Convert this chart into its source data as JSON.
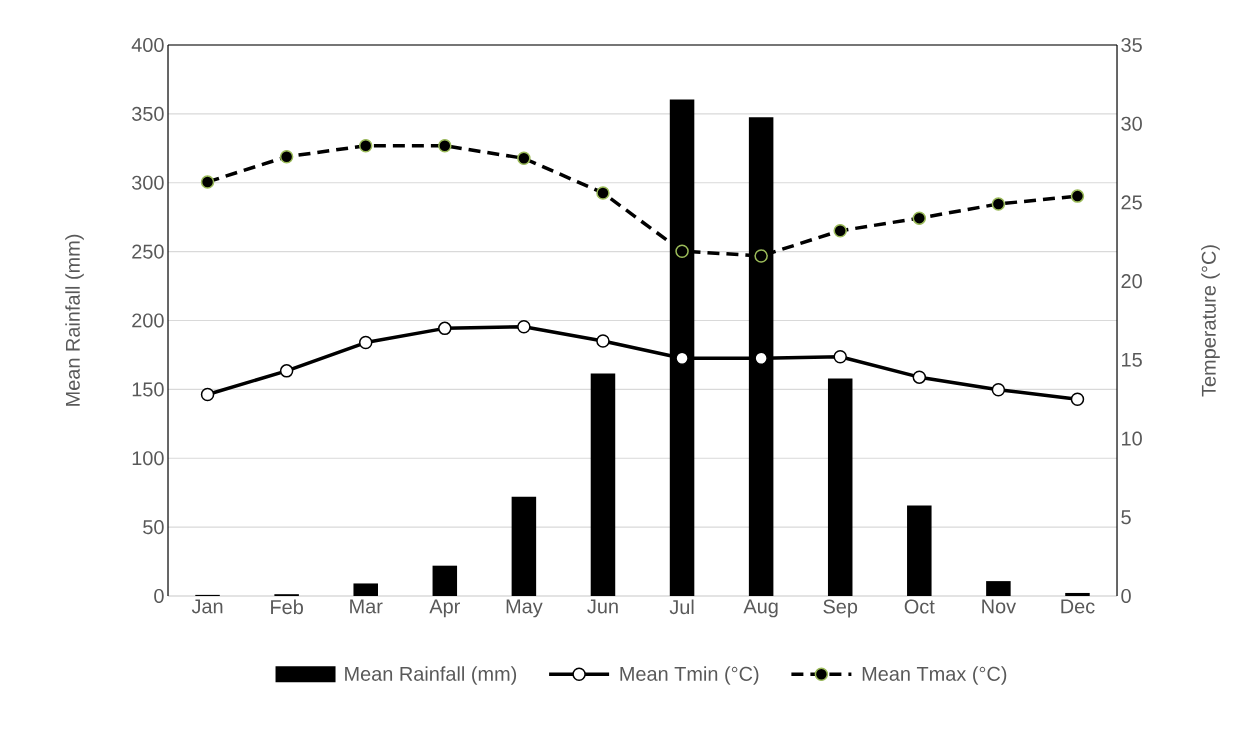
{
  "chart_data": {
    "type": "bar",
    "categories": [
      "Jan",
      "Feb",
      "Mar",
      "Apr",
      "May",
      "Jun",
      "Jul",
      "Aug",
      "Sep",
      "Oct",
      "Nov",
      "Dec"
    ],
    "ylabel": "Mean Rainfall (mm)",
    "y2label": "Temperature (°C)",
    "ylim": [
      0,
      400
    ],
    "yticks": [
      0,
      50,
      100,
      150,
      200,
      250,
      300,
      350,
      400
    ],
    "y2lim": [
      0,
      35
    ],
    "y2ticks": [
      0,
      5,
      10,
      15,
      20,
      25,
      30,
      35
    ],
    "grid": "y",
    "legend": "bottom",
    "marker": "circle",
    "series": [
      {
        "name": "Mean Rainfall (mm)",
        "color": "#000000",
        "values": [
          0.8,
          1.3,
          9.1,
          22,
          72,
          161.6,
          360.5,
          347.6,
          157.8,
          65.6,
          10.8,
          2.2
        ]
      },
      {
        "name": "Mean Tmin (°C)",
        "type": "line",
        "axis": "y2",
        "color": "#000000",
        "line_style": "solid",
        "values": [
          12.8,
          14.3,
          16.1,
          17.0,
          17.1,
          16.2,
          15.1,
          15.1,
          15.2,
          13.9,
          13.1,
          12.5
        ]
      },
      {
        "name": "Mean Tmax (°C)",
        "type": "line",
        "axis": "y2",
        "color": "#000000",
        "line_style": "dashed",
        "values": [
          26.3,
          27.9,
          28.6,
          28.6,
          27.8,
          25.6,
          21.9,
          21.6,
          23.2,
          24.0,
          24.9,
          25.4
        ]
      }
    ]
  }
}
